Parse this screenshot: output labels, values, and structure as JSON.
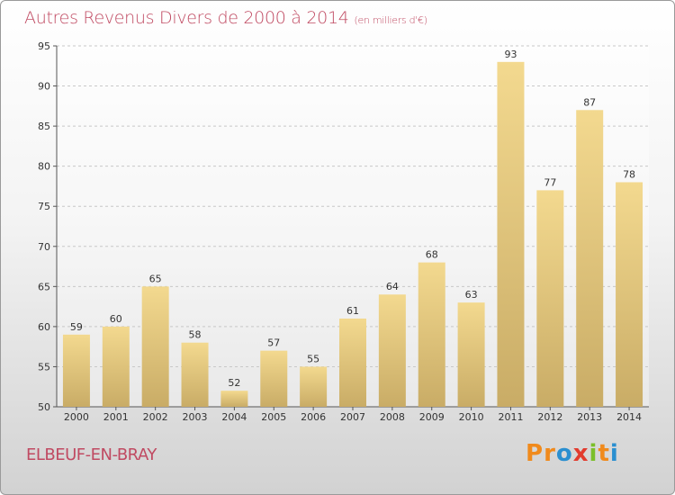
{
  "title": "Autres Revenus Divers de 2000 à 2014",
  "unit": "(en milliers d'€)",
  "commune": "ELBEUF-EN-BRAY",
  "logo": {
    "letters": [
      "P",
      "r",
      "o",
      "x",
      "i",
      "t",
      "i"
    ],
    "colors": [
      "#f08a1c",
      "#f08a1c",
      "#2a8fd0",
      "#e23b2e",
      "#7bbf2a",
      "#f08a1c",
      "#2a8fd0"
    ]
  },
  "colors": {
    "bar_light": "#f3d98f",
    "bar_dark": "#c9ac66",
    "title": "#c04a62",
    "grid": "#c8c8c8"
  },
  "chart_data": {
    "type": "bar",
    "title": "Autres Revenus Divers de 2000 à 2014",
    "subtitle": "(en milliers d'€)",
    "xlabel": "",
    "ylabel": "",
    "categories": [
      "2000",
      "2001",
      "2002",
      "2003",
      "2004",
      "2005",
      "2006",
      "2007",
      "2008",
      "2009",
      "2010",
      "2011",
      "2012",
      "2013",
      "2014"
    ],
    "values": [
      59,
      60,
      65,
      58,
      52,
      57,
      55,
      61,
      64,
      68,
      63,
      93,
      77,
      87,
      78
    ],
    "ylim": [
      50,
      95
    ],
    "yticks": [
      50,
      55,
      60,
      65,
      70,
      75,
      80,
      85,
      90,
      95
    ],
    "grid": true,
    "data_labels": true
  }
}
